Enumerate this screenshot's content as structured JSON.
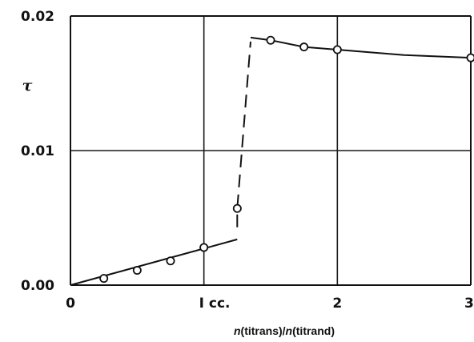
{
  "chart_data": {
    "type": "line",
    "title": "",
    "ylabel": "τ",
    "xlabel": {
      "v1": "n",
      "p1": "(titrans)/",
      "v2": "n",
      "p2": "(titrand)"
    },
    "xlim": [
      0,
      3
    ],
    "ylim": [
      0,
      0.02
    ],
    "grid": true,
    "x_ticks": [
      {
        "value": 0,
        "label": "0"
      },
      {
        "value": 1,
        "label": "I cc."
      },
      {
        "value": 2,
        "label": "2"
      },
      {
        "value": 3,
        "label": "3"
      }
    ],
    "y_ticks": [
      {
        "value": 0,
        "label": "0.00"
      },
      {
        "value": 0.01,
        "label": "0.01"
      },
      {
        "value": 0.02,
        "label": "0.02"
      }
    ],
    "series": [
      {
        "points": [
          {
            "x": 0.25,
            "y": 0.0005
          },
          {
            "x": 0.5,
            "y": 0.0011
          },
          {
            "x": 0.75,
            "y": 0.0018
          },
          {
            "x": 1.0,
            "y": 0.0028
          },
          {
            "x": 1.25,
            "y": 0.0057
          },
          {
            "x": 1.5,
            "y": 0.0182
          },
          {
            "x": 1.75,
            "y": 0.0177
          },
          {
            "x": 2.0,
            "y": 0.0175
          },
          {
            "x": 3.0,
            "y": 0.0169
          }
        ]
      }
    ],
    "lines": [
      {
        "style": "solid",
        "points": [
          {
            "x": 0,
            "y": 0
          },
          {
            "x": 1.25,
            "y": 0.0034
          }
        ]
      },
      {
        "style": "dashed",
        "points": [
          {
            "x": 1.25,
            "y": 0.0043
          },
          {
            "x": 1.25,
            "y": 0.0057
          },
          {
            "x": 1.35,
            "y": 0.0181
          }
        ]
      },
      {
        "style": "solid",
        "points": [
          {
            "x": 1.35,
            "y": 0.0184
          },
          {
            "x": 1.5,
            "y": 0.0182
          },
          {
            "x": 1.75,
            "y": 0.0177
          },
          {
            "x": 2.0,
            "y": 0.0175
          },
          {
            "x": 2.5,
            "y": 0.0171
          },
          {
            "x": 3.0,
            "y": 0.0169
          }
        ]
      }
    ]
  }
}
